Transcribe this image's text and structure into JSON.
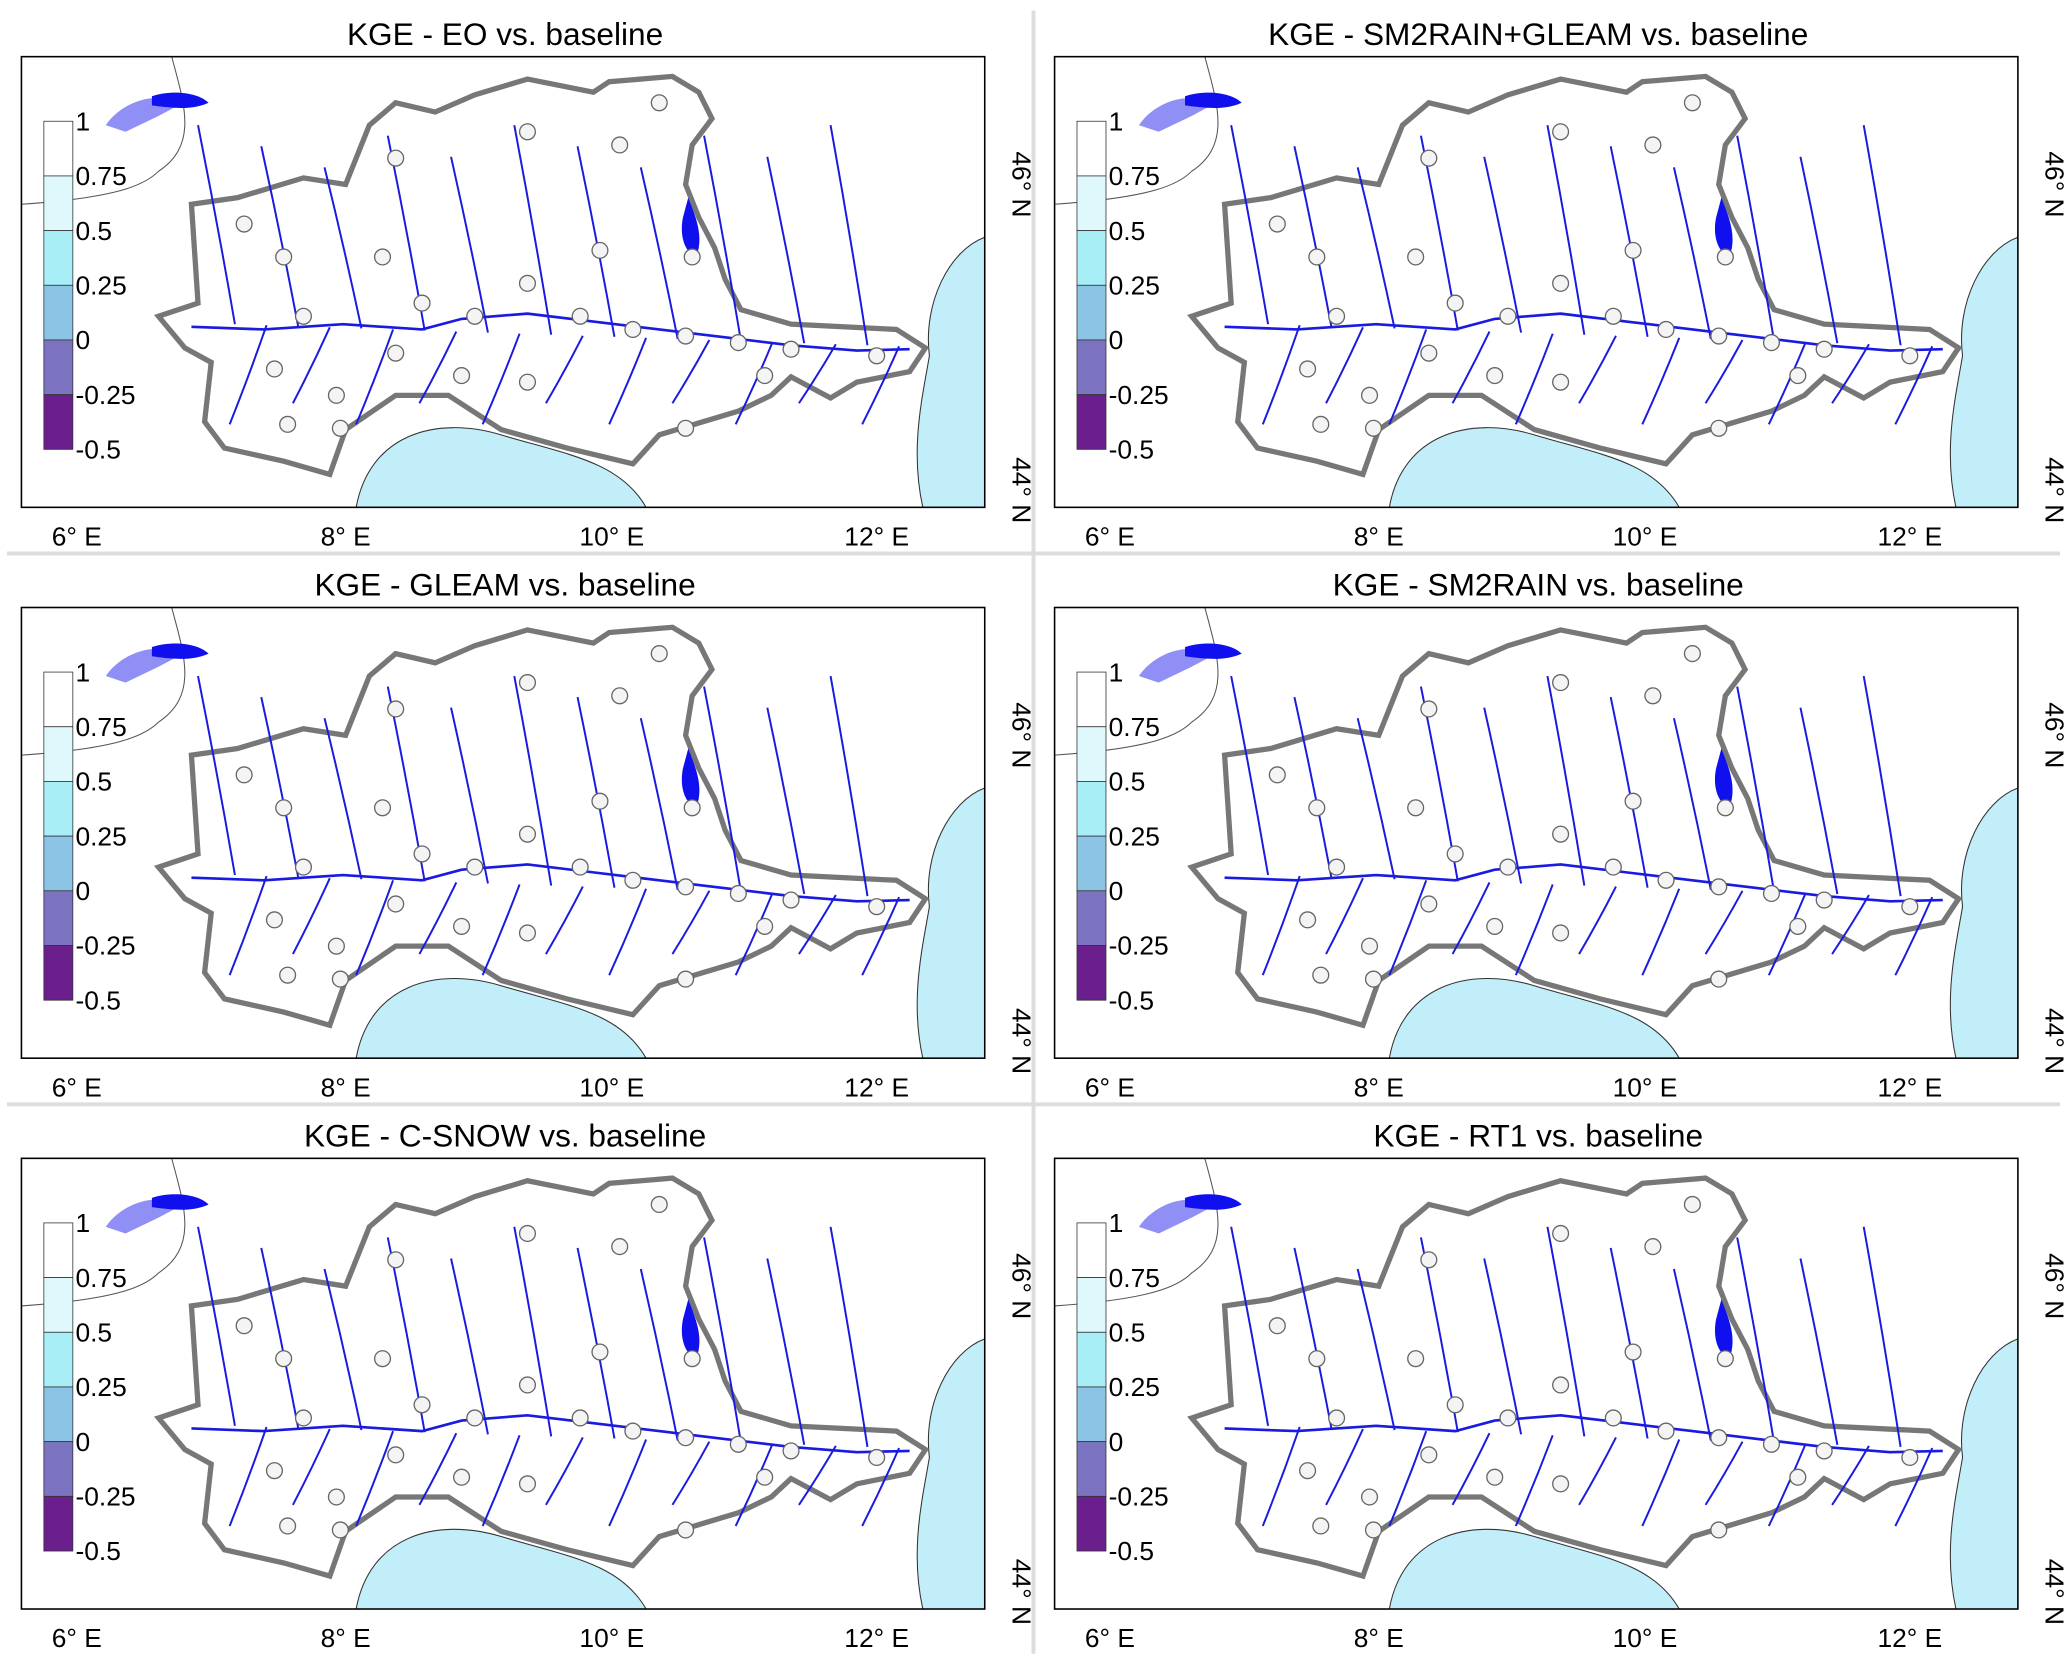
{
  "panels": [
    {
      "title": "KGE - EO vs. baseline"
    },
    {
      "title": "KGE - SM2RAIN+GLEAM vs. baseline"
    },
    {
      "title": "KGE - GLEAM vs. baseline"
    },
    {
      "title": "KGE - SM2RAIN vs. baseline"
    },
    {
      "title": "KGE - C-SNOW vs. baseline"
    },
    {
      "title": "KGE - RT1 vs. baseline"
    }
  ],
  "colorbar": {
    "labels": [
      "1",
      "0.75",
      "0.5",
      "0.25",
      "0",
      "-0.25",
      "-0.5"
    ],
    "colors": [
      "#ffffff",
      "#dff8fb",
      "#a8eef6",
      "#8cc4e6",
      "#7c74c1",
      "#6a1f8c"
    ]
  },
  "x_axis_labels": [
    "6° E",
    "8° E",
    "10° E",
    "12° E"
  ],
  "y_axis_labels": [
    "46° N",
    "44° N"
  ]
}
